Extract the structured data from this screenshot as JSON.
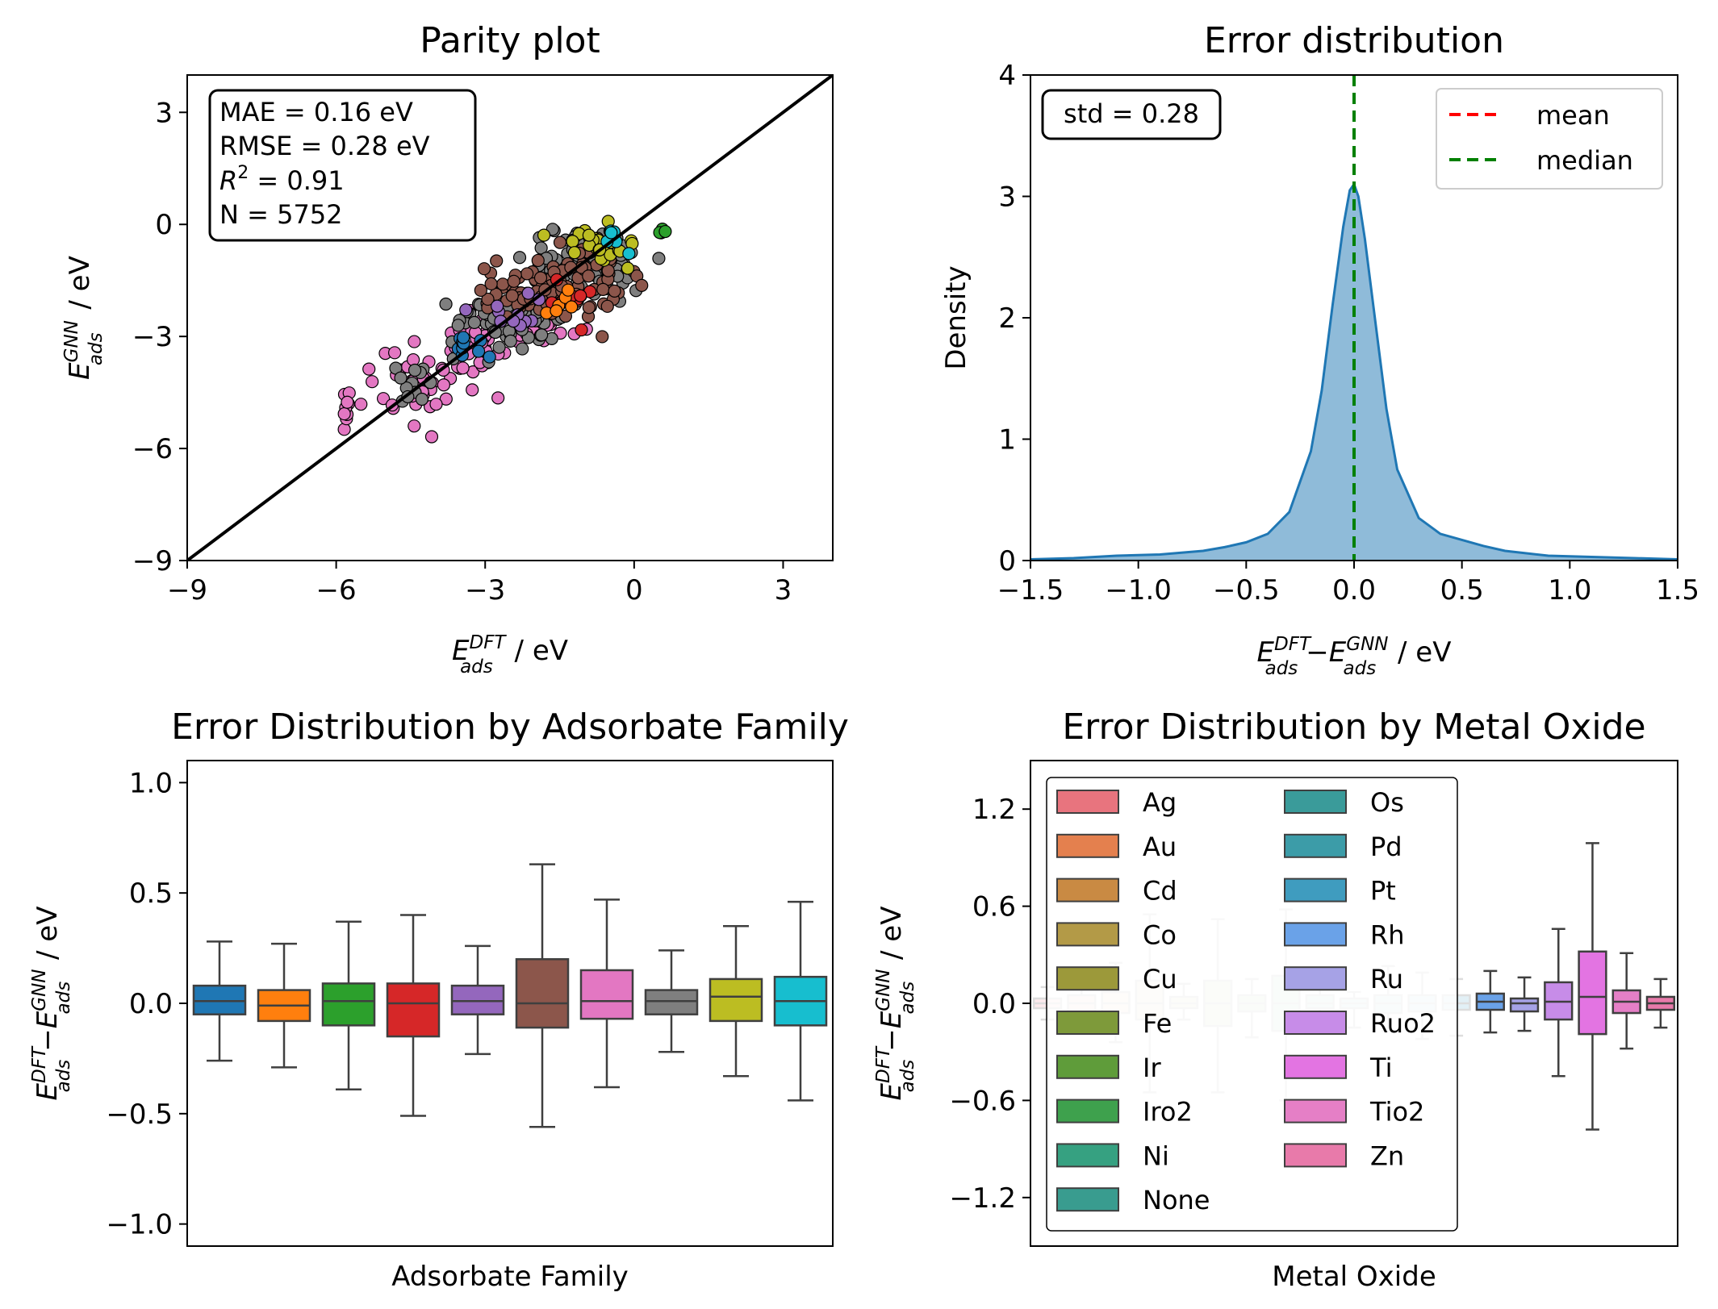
{
  "chart_data": [
    {
      "type": "scatter",
      "title": "Parity plot",
      "xlabel": {
        "main": "E",
        "sup": "DFT",
        "sub": "ads",
        "unit": " / eV"
      },
      "ylabel": {
        "main": "E",
        "sup": "GNN",
        "sub": "ads",
        "unit": " / eV"
      },
      "xlim": [
        -9,
        4
      ],
      "ylim": [
        -9,
        4
      ],
      "xticks": [
        -9,
        -6,
        -3,
        0,
        3
      ],
      "yticks": [
        -9,
        -6,
        -3,
        0,
        3
      ],
      "diagonal": true,
      "stats": {
        "mae": "MAE = 0.16 eV",
        "rmse": "RMSE = 0.28 eV",
        "r2_main": "R",
        "r2_sup": "2",
        "r2_rest": " = 0.91",
        "n": "N = 5752"
      },
      "clusters": [
        {
          "color": "#e377c2",
          "cx": -4.3,
          "cy": -4.3,
          "sx": 0.55,
          "sy": 0.55,
          "n": 45
        },
        {
          "color": "#e377c2",
          "cx": -5.8,
          "cy": -4.9,
          "sx": 0.12,
          "sy": 0.45,
          "n": 8
        },
        {
          "color": "#e377c2",
          "cx": -3.2,
          "cy": -3.2,
          "sx": 0.3,
          "sy": 0.4,
          "n": 30
        },
        {
          "color": "#e377c2",
          "cx": -2.2,
          "cy": -2.5,
          "sx": 0.45,
          "sy": 0.35,
          "n": 35
        },
        {
          "color": "#7f7f7f",
          "cx": -4.4,
          "cy": -4.4,
          "sx": 0.2,
          "sy": 0.3,
          "n": 12
        },
        {
          "color": "#7f7f7f",
          "cx": -2.6,
          "cy": -2.6,
          "sx": 0.55,
          "sy": 0.35,
          "n": 70
        },
        {
          "color": "#7f7f7f",
          "cx": -1.0,
          "cy": -1.1,
          "sx": 0.55,
          "sy": 0.45,
          "n": 90
        },
        {
          "color": "#8c564b",
          "cx": -2.2,
          "cy": -1.8,
          "sx": 0.5,
          "sy": 0.35,
          "n": 60
        },
        {
          "color": "#8c564b",
          "cx": -1.0,
          "cy": -1.5,
          "sx": 0.5,
          "sy": 0.45,
          "n": 50
        },
        {
          "color": "#1f77b4",
          "cx": -3.4,
          "cy": -3.2,
          "sx": 0.2,
          "sy": 0.2,
          "n": 10
        },
        {
          "color": "#9467bd",
          "cx": -2.5,
          "cy": -2.3,
          "sx": 0.4,
          "sy": 0.3,
          "n": 12
        },
        {
          "color": "#d62728",
          "cx": -1.2,
          "cy": -1.9,
          "sx": 0.3,
          "sy": 0.3,
          "n": 8
        },
        {
          "color": "#ff7f0e",
          "cx": -1.6,
          "cy": -2.2,
          "sx": 0.3,
          "sy": 0.2,
          "n": 6
        },
        {
          "color": "#bcbd22",
          "cx": -0.6,
          "cy": -0.5,
          "sx": 0.35,
          "sy": 0.3,
          "n": 30
        },
        {
          "color": "#17becf",
          "cx": -0.4,
          "cy": -0.3,
          "sx": 0.2,
          "sy": 0.15,
          "n": 6
        },
        {
          "color": "#2ca02c",
          "cx": 0.5,
          "cy": -0.2,
          "sx": 0.05,
          "sy": 0.05,
          "n": 4
        }
      ]
    },
    {
      "type": "area",
      "title": "Error distribution",
      "ylabel": "Density",
      "xlabel": {
        "m1": "E",
        "p1sup": "DFT",
        "p1sub": "ads",
        "minus": "−",
        "m2": "E",
        "p2sup": "GNN",
        "p2sub": "ads",
        "unit": " / eV"
      },
      "xlim": [
        -1.5,
        1.5
      ],
      "ylim": [
        0,
        4
      ],
      "xticks": [
        -1.5,
        -1.0,
        -0.5,
        0.0,
        0.5,
        1.0,
        1.5
      ],
      "xtick_labels": [
        "−1.5",
        "−1.0",
        "−0.5",
        "0.0",
        "0.5",
        "1.0",
        "1.5"
      ],
      "yticks": [
        0,
        1,
        2,
        3,
        4
      ],
      "std_text": "std = 0.28",
      "mean": 0.0,
      "median": 0.0,
      "legend": [
        {
          "label": "mean",
          "color": "#ff0000"
        },
        {
          "label": "median",
          "color": "#008000"
        }
      ],
      "legend_position": "top-right",
      "fill_color": "#1f77b4",
      "x": [
        -1.5,
        -1.3,
        -1.1,
        -0.9,
        -0.7,
        -0.6,
        -0.5,
        -0.4,
        -0.3,
        -0.2,
        -0.15,
        -0.1,
        -0.05,
        -0.02,
        0.0,
        0.02,
        0.05,
        0.1,
        0.15,
        0.2,
        0.3,
        0.4,
        0.5,
        0.6,
        0.7,
        0.9,
        1.1,
        1.3,
        1.5
      ],
      "y": [
        0.01,
        0.02,
        0.04,
        0.05,
        0.08,
        0.11,
        0.15,
        0.22,
        0.4,
        0.9,
        1.4,
        2.1,
        2.75,
        3.05,
        3.1,
        3.0,
        2.65,
        1.95,
        1.25,
        0.75,
        0.35,
        0.22,
        0.17,
        0.12,
        0.08,
        0.04,
        0.03,
        0.02,
        0.01
      ]
    },
    {
      "type": "box",
      "title": "Error Distribution by Adsorbate Family",
      "xlabel": "Adsorbate Family",
      "ylabel": {
        "m1": "E",
        "p1sup": "DFT",
        "p1sub": "ads",
        "minus": "−",
        "m2": "E",
        "p2sup": "GNN",
        "p2sub": "ads",
        "unit": " / eV"
      },
      "ylim": [
        -1.1,
        1.1
      ],
      "yticks": [
        -1.0,
        -0.5,
        0.0,
        0.5,
        1.0
      ],
      "ytick_labels": [
        "−1.0",
        "−0.5",
        "0.0",
        "0.5",
        "1.0"
      ],
      "boxes": [
        {
          "color": "#1f77b4",
          "wl": -0.26,
          "q1": -0.05,
          "med": 0.01,
          "q3": 0.08,
          "wh": 0.28
        },
        {
          "color": "#ff7f0e",
          "wl": -0.29,
          "q1": -0.08,
          "med": -0.01,
          "q3": 0.06,
          "wh": 0.27
        },
        {
          "color": "#2ca02c",
          "wl": -0.39,
          "q1": -0.1,
          "med": 0.01,
          "q3": 0.09,
          "wh": 0.37
        },
        {
          "color": "#d62728",
          "wl": -0.51,
          "q1": -0.15,
          "med": 0.0,
          "q3": 0.09,
          "wh": 0.4
        },
        {
          "color": "#9467bd",
          "wl": -0.23,
          "q1": -0.05,
          "med": 0.01,
          "q3": 0.08,
          "wh": 0.26
        },
        {
          "color": "#8c564b",
          "wl": -0.56,
          "q1": -0.11,
          "med": 0.0,
          "q3": 0.2,
          "wh": 0.63
        },
        {
          "color": "#e377c2",
          "wl": -0.38,
          "q1": -0.07,
          "med": 0.01,
          "q3": 0.15,
          "wh": 0.47
        },
        {
          "color": "#7f7f7f",
          "wl": -0.22,
          "q1": -0.05,
          "med": 0.01,
          "q3": 0.06,
          "wh": 0.24
        },
        {
          "color": "#bcbd22",
          "wl": -0.33,
          "q1": -0.08,
          "med": 0.03,
          "q3": 0.11,
          "wh": 0.35
        },
        {
          "color": "#17becf",
          "wl": -0.44,
          "q1": -0.1,
          "med": 0.01,
          "q3": 0.12,
          "wh": 0.46
        }
      ]
    },
    {
      "type": "box",
      "title": "Error Distribution by Metal Oxide",
      "xlabel": "Metal Oxide",
      "ylabel": {
        "m1": "E",
        "p1sup": "DFT",
        "p1sub": "ads",
        "minus": "−",
        "m2": "E",
        "p2sup": "GNN",
        "p2sub": "ads",
        "unit": " / eV"
      },
      "ylim": [
        -1.5,
        1.5
      ],
      "yticks": [
        -1.2,
        -0.6,
        0.0,
        0.6,
        1.2
      ],
      "ytick_labels": [
        "−1.2",
        "−0.6",
        "0.0",
        "0.6",
        "1.2"
      ],
      "legend_position": "upper-left",
      "boxes": [
        {
          "label": "Ag",
          "color": "#e8747e",
          "wl": -0.1,
          "q1": -0.03,
          "med": 0.0,
          "q3": 0.03,
          "wh": 0.1
        },
        {
          "label": "Au",
          "color": "#e4804e",
          "wl": -0.17,
          "q1": -0.05,
          "med": 0.0,
          "q3": 0.05,
          "wh": 0.17
        },
        {
          "label": "Cd",
          "color": "#c98a43",
          "wl": -0.24,
          "q1": -0.06,
          "med": 0.0,
          "q3": 0.07,
          "wh": 0.25
        },
        {
          "label": "Co",
          "color": "#b39a47",
          "wl": -0.55,
          "q1": -0.1,
          "med": 0.0,
          "q3": 0.14,
          "wh": 0.55
        },
        {
          "label": "Cu",
          "color": "#9c993a",
          "wl": -0.1,
          "q1": -0.03,
          "med": 0.0,
          "q3": 0.04,
          "wh": 0.12
        },
        {
          "label": "Fe",
          "color": "#7e9a3a",
          "wl": -0.55,
          "q1": -0.14,
          "med": 0.0,
          "q3": 0.14,
          "wh": 0.52
        },
        {
          "label": "Ir",
          "color": "#5f9c3a",
          "wl": -0.21,
          "q1": -0.05,
          "med": 0.0,
          "q3": 0.05,
          "wh": 0.15
        },
        {
          "label": "Iro2",
          "color": "#3ea14d",
          "wl": -0.6,
          "q1": -0.17,
          "med": 0.0,
          "q3": 0.17,
          "wh": 0.58
        },
        {
          "label": "Ni",
          "color": "#36a181",
          "wl": -0.16,
          "q1": -0.03,
          "med": 0.0,
          "q3": 0.05,
          "wh": 0.15
        },
        {
          "label": "None",
          "color": "#399c8f",
          "wl": -0.15,
          "q1": -0.03,
          "med": 0.0,
          "q3": 0.03,
          "wh": 0.07
        },
        {
          "label": "Os",
          "color": "#3a9b9a",
          "wl": -0.17,
          "q1": -0.06,
          "med": 0.0,
          "q3": 0.05,
          "wh": 0.23
        },
        {
          "label": "Pd",
          "color": "#3c9ca8",
          "wl": -0.22,
          "q1": -0.05,
          "med": 0.0,
          "q3": 0.05,
          "wh": 0.19
        },
        {
          "label": "Pt",
          "color": "#3f9cbf",
          "wl": -0.2,
          "q1": -0.04,
          "med": 0.0,
          "q3": 0.05,
          "wh": 0.15
        },
        {
          "label": "Rh",
          "color": "#6aa2e8",
          "wl": -0.18,
          "q1": -0.04,
          "med": 0.01,
          "q3": 0.06,
          "wh": 0.2
        },
        {
          "label": "Ru",
          "color": "#a6a2e6",
          "wl": -0.17,
          "q1": -0.05,
          "med": 0.0,
          "q3": 0.03,
          "wh": 0.16
        },
        {
          "label": "Ruo2",
          "color": "#c78ce8",
          "wl": -0.45,
          "q1": -0.1,
          "med": 0.01,
          "q3": 0.13,
          "wh": 0.46
        },
        {
          "label": "Ti",
          "color": "#e374e2",
          "wl": -0.78,
          "q1": -0.19,
          "med": 0.04,
          "q3": 0.32,
          "wh": 0.99
        },
        {
          "label": "Tio2",
          "color": "#e57fc6",
          "wl": -0.28,
          "q1": -0.06,
          "med": 0.01,
          "q3": 0.08,
          "wh": 0.31
        },
        {
          "label": "Zn",
          "color": "#e87aaa",
          "wl": -0.15,
          "q1": -0.04,
          "med": 0.0,
          "q3": 0.04,
          "wh": 0.15
        }
      ],
      "faded_count": 13
    }
  ]
}
